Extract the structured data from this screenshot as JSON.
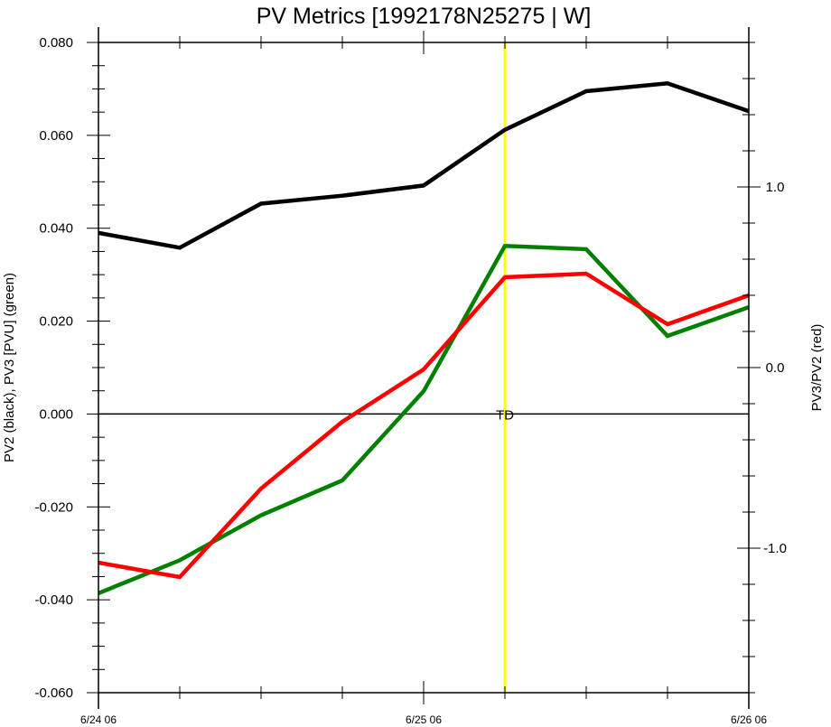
{
  "chart_data": {
    "type": "line",
    "title": "PV Metrics [1992178N25275 | W]",
    "x": [
      "6/24 06",
      "6/24 12",
      "6/24 18",
      "6/25 00",
      "6/25 06",
      "6/25 12",
      "6/25 18",
      "6/26 00",
      "6/26 06"
    ],
    "x_tick_labels": [
      "6/24 06",
      "6/25 06",
      "6/26 06"
    ],
    "ylabel_left": "PV2 (black), PV3 [PVU] (green)",
    "ylabel_right": "PV3/PV2 (red)",
    "ylim_left": [
      -0.06,
      0.08
    ],
    "ylim_right": [
      -1.8,
      1.8
    ],
    "y_ticks_left": [
      "-0.060",
      "-0.040",
      "-0.020",
      "0.000",
      "0.020",
      "0.040",
      "0.060",
      "0.080"
    ],
    "y_ticks_right": [
      "-1.0",
      "0.0",
      "1.0"
    ],
    "series": [
      {
        "color": "#000000",
        "axis": "left",
        "values": [
          0.039,
          0.0358,
          0.0453,
          0.047,
          0.0492,
          0.0612,
          0.0695,
          0.0712,
          0.0652
        ]
      },
      {
        "color": "#008000",
        "axis": "left",
        "values": [
          -0.0386,
          -0.0315,
          -0.0218,
          -0.0143,
          0.0049,
          0.0362,
          0.0355,
          0.0168,
          0.023
        ]
      },
      {
        "color": "#ff0000",
        "axis": "right",
        "values": [
          -1.08,
          -1.16,
          -0.67,
          -0.3,
          -0.01,
          0.5,
          0.52,
          0.24,
          0.4
        ]
      }
    ],
    "zero_line": 0.0,
    "annotations": [
      {
        "text": "TD",
        "x": "6/25 12",
        "y": 0.0
      }
    ],
    "vertical_marker": {
      "x": "6/25 12",
      "color": "#ffff00"
    },
    "grid": false,
    "legend": "none"
  }
}
